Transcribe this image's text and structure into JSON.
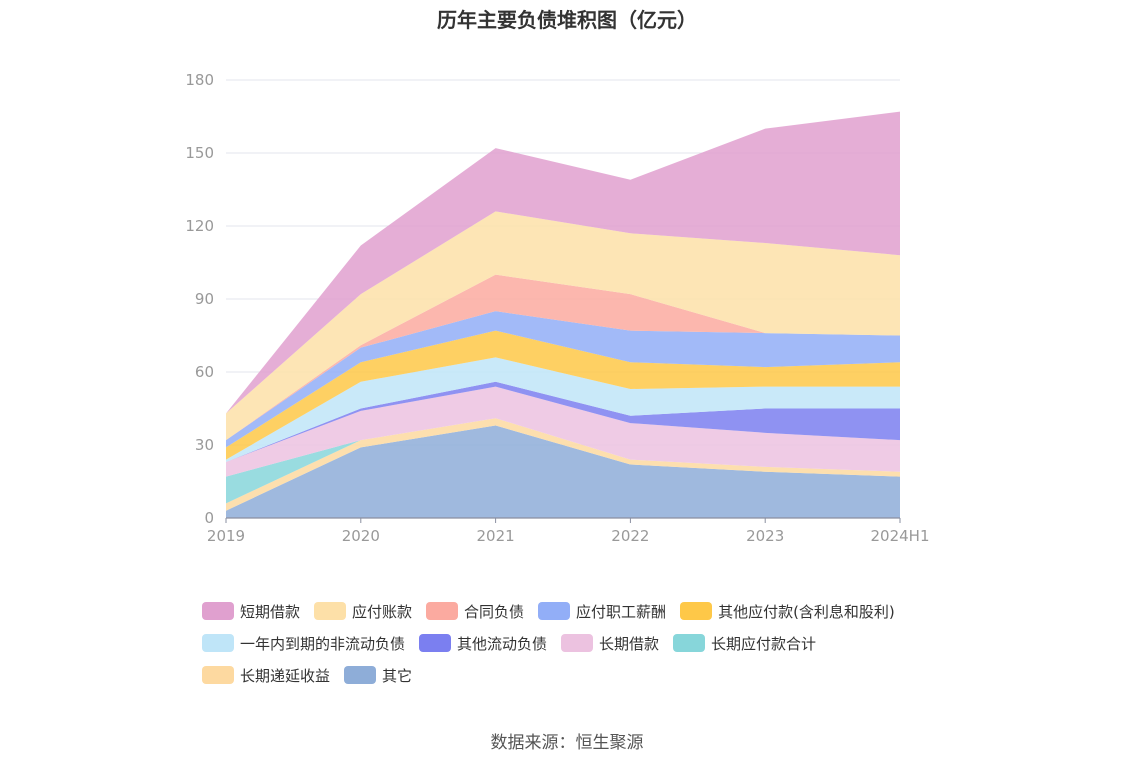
{
  "chart_data": {
    "type": "area",
    "stacked": true,
    "title": "历年主要负债堆积图（亿元）",
    "categories": [
      "2019",
      "2020",
      "2021",
      "2022",
      "2023",
      "2024H1"
    ],
    "ylim": [
      0,
      180
    ],
    "yticks": [
      0,
      30,
      60,
      90,
      120,
      150,
      180
    ],
    "grid": true,
    "legend_position": "bottom",
    "series": [
      {
        "name": "其它",
        "color": "#8eadd8",
        "values": [
          3,
          29,
          38,
          22,
          19,
          17
        ]
      },
      {
        "name": "长期递延收益",
        "color": "#fdd9a0",
        "values": [
          3,
          3,
          3,
          2,
          2,
          2
        ]
      },
      {
        "name": "长期应付款合计",
        "color": "#87d6da",
        "values": [
          11,
          0,
          0,
          0,
          0,
          0
        ]
      },
      {
        "name": "长期借款",
        "color": "#ecc2e0",
        "values": [
          6,
          12,
          13,
          15,
          14,
          13
        ]
      },
      {
        "name": "其他流动负债",
        "color": "#7b7ff0",
        "values": [
          0,
          1,
          2,
          3,
          10,
          13
        ]
      },
      {
        "name": "一年内到期的非流动负债",
        "color": "#bfe5f8",
        "values": [
          1,
          11,
          10,
          11,
          9,
          9
        ]
      },
      {
        "name": "其他应付款(含利息和股利)",
        "color": "#fec848",
        "values": [
          5,
          8,
          11,
          11,
          8,
          10
        ]
      },
      {
        "name": "应付职工薪酬",
        "color": "#92aef7",
        "values": [
          3,
          6,
          8,
          13,
          14,
          11
        ]
      },
      {
        "name": "合同负债",
        "color": "#fbaaa0",
        "values": [
          0,
          1,
          15,
          15,
          0,
          0
        ]
      },
      {
        "name": "应付账款",
        "color": "#fde0a8",
        "values": [
          11,
          21,
          26,
          25,
          37,
          33
        ]
      },
      {
        "name": "短期借款",
        "color": "#e0a0cf",
        "values": [
          0,
          20,
          26,
          22,
          47,
          59
        ]
      }
    ],
    "legend_order": [
      "短期借款",
      "应付账款",
      "合同负债",
      "应付职工薪酬",
      "其他应付款(含利息和股利)",
      "一年内到期的非流动负债",
      "其他流动负债",
      "长期借款",
      "长期应付款合计",
      "长期递延收益",
      "其它"
    ]
  },
  "source": "数据来源：恒生聚源"
}
